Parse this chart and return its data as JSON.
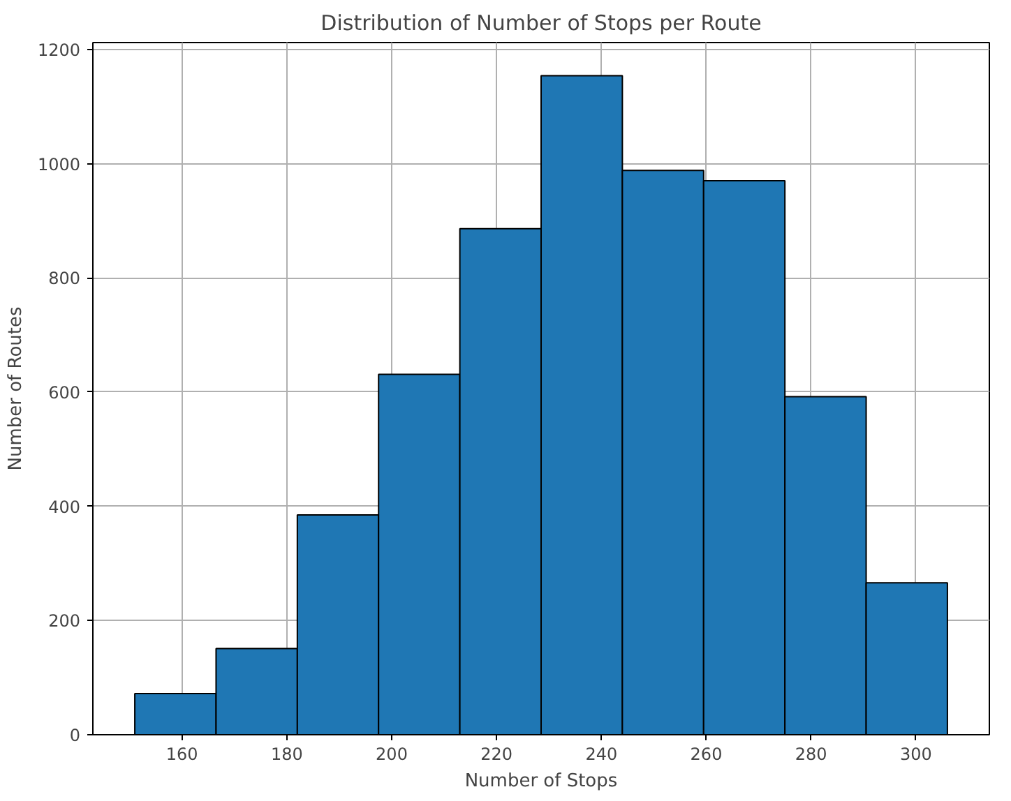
{
  "chart_data": {
    "type": "histogram",
    "title": "Distribution of Number of Stops per Route",
    "xlabel": "Number of Stops",
    "ylabel": "Number of Routes",
    "bins": [
      151,
      166.5,
      182,
      197.5,
      213,
      228.5,
      244,
      259.5,
      275,
      290.5,
      306
    ],
    "values": [
      72,
      151,
      385,
      631,
      886,
      1154,
      988,
      970,
      592,
      266
    ],
    "color": "#1f77b4",
    "xlim": [
      143,
      314
    ],
    "xticks": [
      160,
      180,
      200,
      220,
      240,
      260,
      280,
      300
    ],
    "ylim": [
      0,
      1212
    ],
    "yticks": [
      0,
      200,
      400,
      600,
      800,
      1000,
      1200
    ],
    "grid": true
  }
}
